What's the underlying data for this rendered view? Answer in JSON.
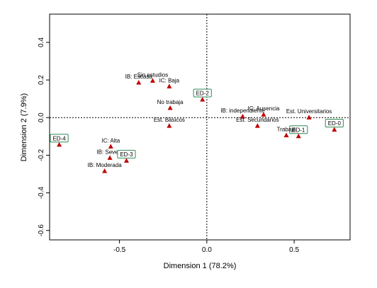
{
  "chart_data": {
    "type": "scatter",
    "xlabel": "Dimension 1 (78.2%)",
    "ylabel": "Dimension 2 (7.9%)",
    "xlim": [
      -0.9,
      0.82
    ],
    "ylim": [
      -0.65,
      0.55
    ],
    "x_ticks": [
      -0.5,
      0.0,
      0.5
    ],
    "x_tick_labels": [
      "-0.5",
      "0.0",
      "0.5"
    ],
    "y_ticks": [
      -0.6,
      -0.4,
      -0.2,
      0.0,
      0.2,
      0.4
    ],
    "y_tick_labels": [
      "-0.6",
      "-0.4",
      "-0.2",
      "0.0",
      "0.2",
      "0.4"
    ],
    "reference_lines": {
      "x": 0,
      "y": 0,
      "style": "dotted"
    },
    "marker_color": "#c00000",
    "box_color": "#2e8b57",
    "points": [
      {
        "label": "Sin estudios",
        "x": -0.31,
        "y": 0.195,
        "boxed": false
      },
      {
        "label": "IB: Escasa",
        "x": -0.39,
        "y": 0.185,
        "boxed": false
      },
      {
        "label": "IC: Baja",
        "x": -0.215,
        "y": 0.165,
        "boxed": false
      },
      {
        "label": "No trabaja",
        "x": -0.21,
        "y": 0.05,
        "boxed": false
      },
      {
        "label": "Est. Básicos",
        "x": -0.215,
        "y": -0.045,
        "boxed": false
      },
      {
        "label": "ED-2",
        "x": -0.025,
        "y": 0.095,
        "boxed": true
      },
      {
        "label": "IB: independiente",
        "x": 0.205,
        "y": 0.005,
        "boxed": false
      },
      {
        "label": "IC: Ausencia",
        "x": 0.325,
        "y": 0.015,
        "boxed": false
      },
      {
        "label": "Est. Universitarios",
        "x": 0.585,
        "y": 0.0,
        "boxed": false
      },
      {
        "label": "Est. Secundarios",
        "x": 0.29,
        "y": -0.045,
        "boxed": false
      },
      {
        "label": "ED-1",
        "x": 0.525,
        "y": -0.1,
        "boxed": true
      },
      {
        "label": "Trabaja",
        "x": 0.455,
        "y": -0.095,
        "boxed": false
      },
      {
        "label": "ED-0",
        "x": 0.73,
        "y": -0.065,
        "boxed": true
      },
      {
        "label": "ED-4",
        "x": -0.845,
        "y": -0.145,
        "boxed": true
      },
      {
        "label": "IC: Alta",
        "x": -0.55,
        "y": -0.155,
        "boxed": false
      },
      {
        "label": "IB: Severa",
        "x": -0.555,
        "y": -0.215,
        "boxed": false
      },
      {
        "label": "ED-3",
        "x": -0.46,
        "y": -0.23,
        "boxed": true
      },
      {
        "label": "IB: Moderada",
        "x": -0.585,
        "y": -0.285,
        "boxed": false
      }
    ]
  }
}
